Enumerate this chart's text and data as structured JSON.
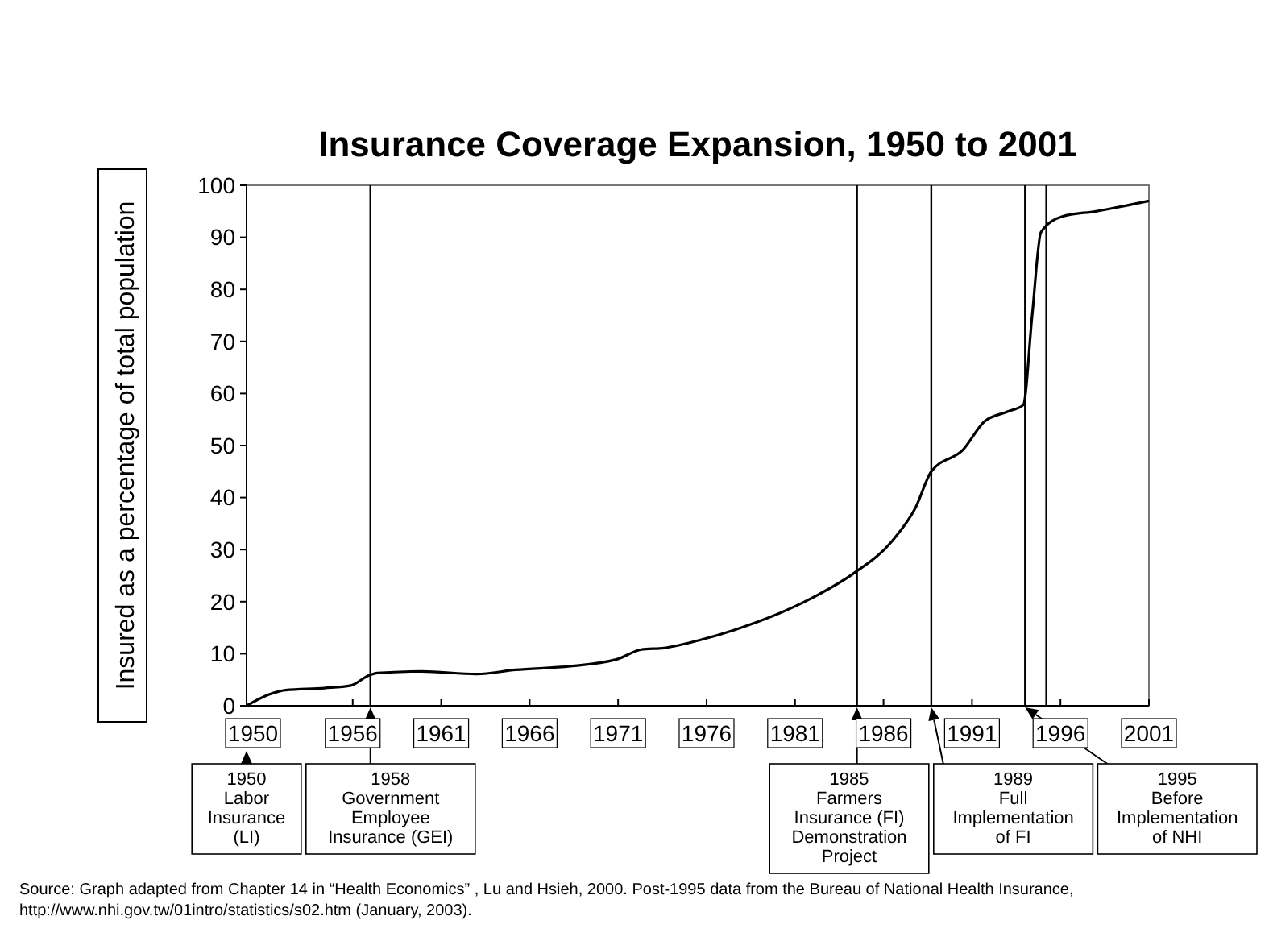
{
  "chart_data": {
    "type": "line",
    "title": "Insurance Coverage Expansion, 1950 to 2001",
    "ylabel": "Insured as a percentage of total population",
    "x": [
      1950,
      1951.3,
      1952.2,
      1954.4,
      1955.9,
      1956.9,
      1957.4,
      1959.9,
      1963,
      1965.2,
      1968.3,
      1971,
      1972.3,
      1973.6,
      1975.7,
      1977.6,
      1981.9,
      1984.3,
      1986.5,
      1987.8,
      1988.7,
      1990.5,
      1991.7,
      1993,
      1993.9,
      1994.4,
      1994.9,
      1996.1,
      1998,
      2001
    ],
    "series": [
      {
        "color": "#000000",
        "values": [
          0,
          2.2,
          3,
          3.4,
          3.9,
          5.8,
          6.3,
          6.6,
          6.1,
          6.9,
          7.6,
          9,
          10.8,
          11.1,
          12.7,
          14.6,
          20.6,
          25.4,
          31.7,
          38,
          45,
          49.2,
          54.6,
          56.5,
          57.8,
          75,
          91,
          94,
          95,
          97
        ]
      }
    ],
    "xlim": [
      1950,
      2001
    ],
    "xticks": [
      1950,
      1956,
      1961,
      1966,
      1971,
      1976,
      1981,
      1986,
      1991,
      1996,
      2001
    ],
    "ylim": [
      0,
      100
    ],
    "yticks": [
      0,
      10,
      20,
      30,
      40,
      50,
      60,
      70,
      80,
      90,
      100
    ],
    "grid": false,
    "marker": "none",
    "line_style": "solid",
    "ref_lines": [
      {
        "axis": "x",
        "value": 1957,
        "label": "1958\nGovernment\nEmployee\nInsurance (GEI)"
      },
      {
        "axis": "x",
        "value": 1984.5,
        "label": "1985\nFarmers\nInsurance (FI)\nDemonstration\nProject"
      },
      {
        "axis": "x",
        "value": 1988.7,
        "label": "1989\nFull\nImplementation\nof FI"
      },
      {
        "axis": "x",
        "value": 1994,
        "label": "1995\nBefore\nImplementation\nof NHI"
      },
      {
        "axis": "x",
        "value": 1995.2,
        "label": null
      }
    ],
    "annotations": [
      "1950\nLabor\nInsurance\n(LI)",
      "Source: Graph adapted from Chapter 14  in “Health Economics” , Lu and Hsieh, 2000.  Post-1995 data from the Bureau of National Health Insurance, http://www.nhi.gov.tw/01intro/statistics/s02.htm (January, 2003)."
    ]
  }
}
